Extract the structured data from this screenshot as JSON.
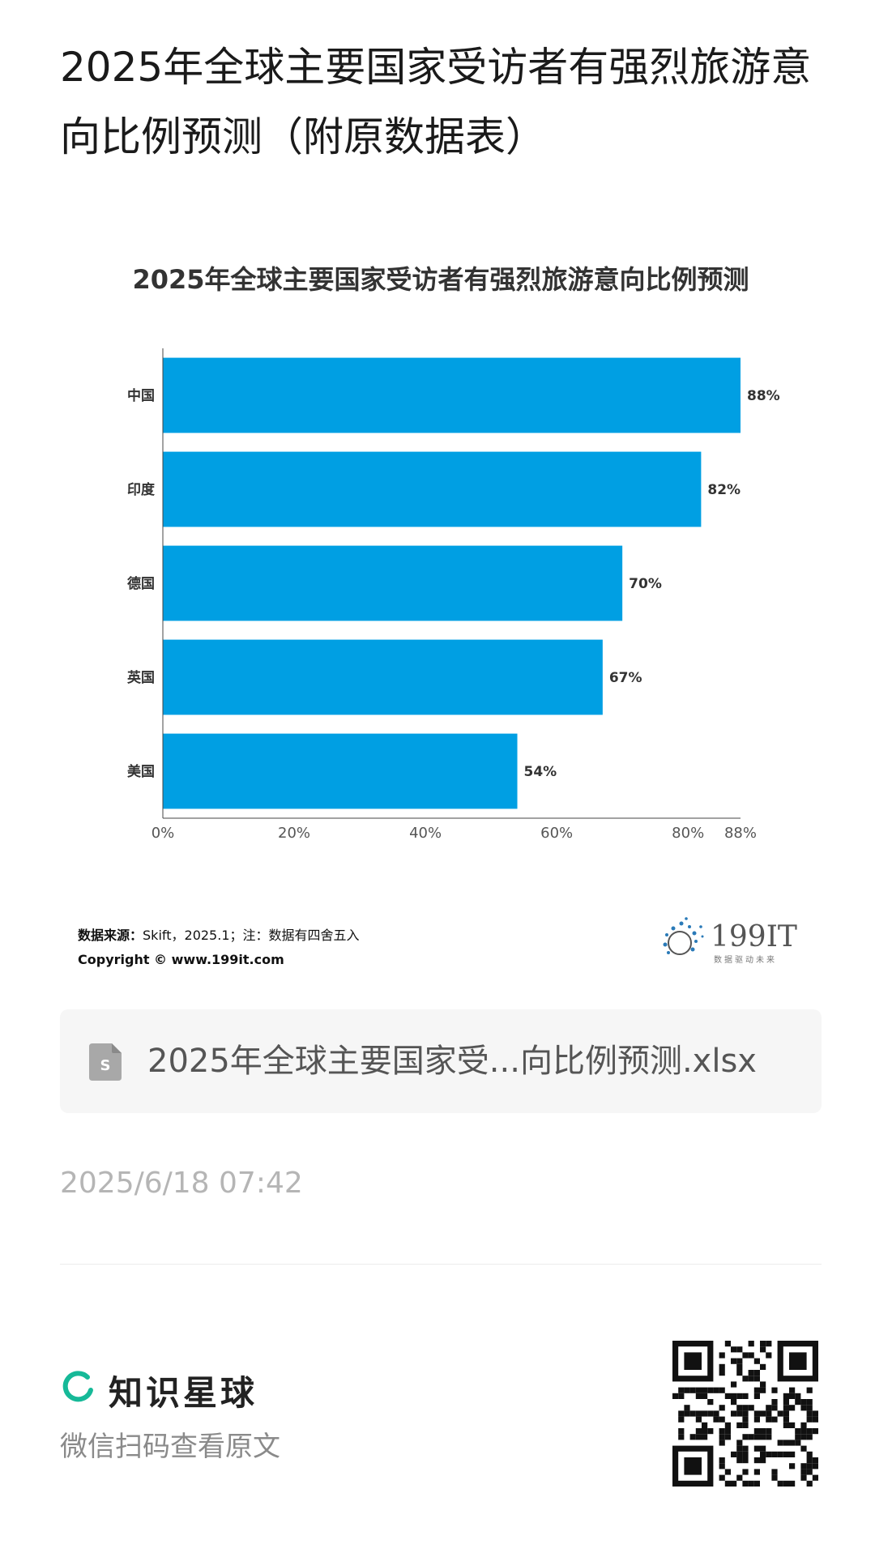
{
  "page": {
    "title": "2025年全球主要国家受访者有强烈旅游意向比例预测（附原数据表）"
  },
  "chart_data": {
    "type": "bar",
    "orientation": "horizontal",
    "title": "2025年全球主要国家受访者有强烈旅游意向比例预测",
    "categories": [
      "中国",
      "印度",
      "德国",
      "英国",
      "美国"
    ],
    "values": [
      88,
      82,
      70,
      67,
      54
    ],
    "value_labels": [
      "88%",
      "82%",
      "70%",
      "67%",
      "54%"
    ],
    "xlim": [
      0,
      88
    ],
    "x_ticks": [
      0,
      20,
      40,
      60,
      80,
      88
    ],
    "x_tick_labels": [
      "0%",
      "20%",
      "40%",
      "60%",
      "80%",
      "88%"
    ],
    "xlabel": "",
    "ylabel": "",
    "bar_color": "#009fe3",
    "grid": false
  },
  "source": {
    "label": "数据来源：",
    "text": "Skift，2025.1；注：数据有四舍五入",
    "copyright": "Copyright © www.199it.com"
  },
  "logo": {
    "brand": "199IT",
    "tagline": "数据驱动未来",
    "icon": "dandelion-icon"
  },
  "attachment": {
    "file_name": "2025年全球主要国家受...向比例预测.xlsx",
    "icon": "spreadsheet-file-icon"
  },
  "timestamp": "2025/6/18 07:42",
  "footer": {
    "brand_name": "知识星球",
    "brand_icon": "planet-ring-icon",
    "brand_color": "#16b998",
    "scan_hint": "微信扫码查看原文",
    "qr_icon": "qr-code-icon"
  }
}
